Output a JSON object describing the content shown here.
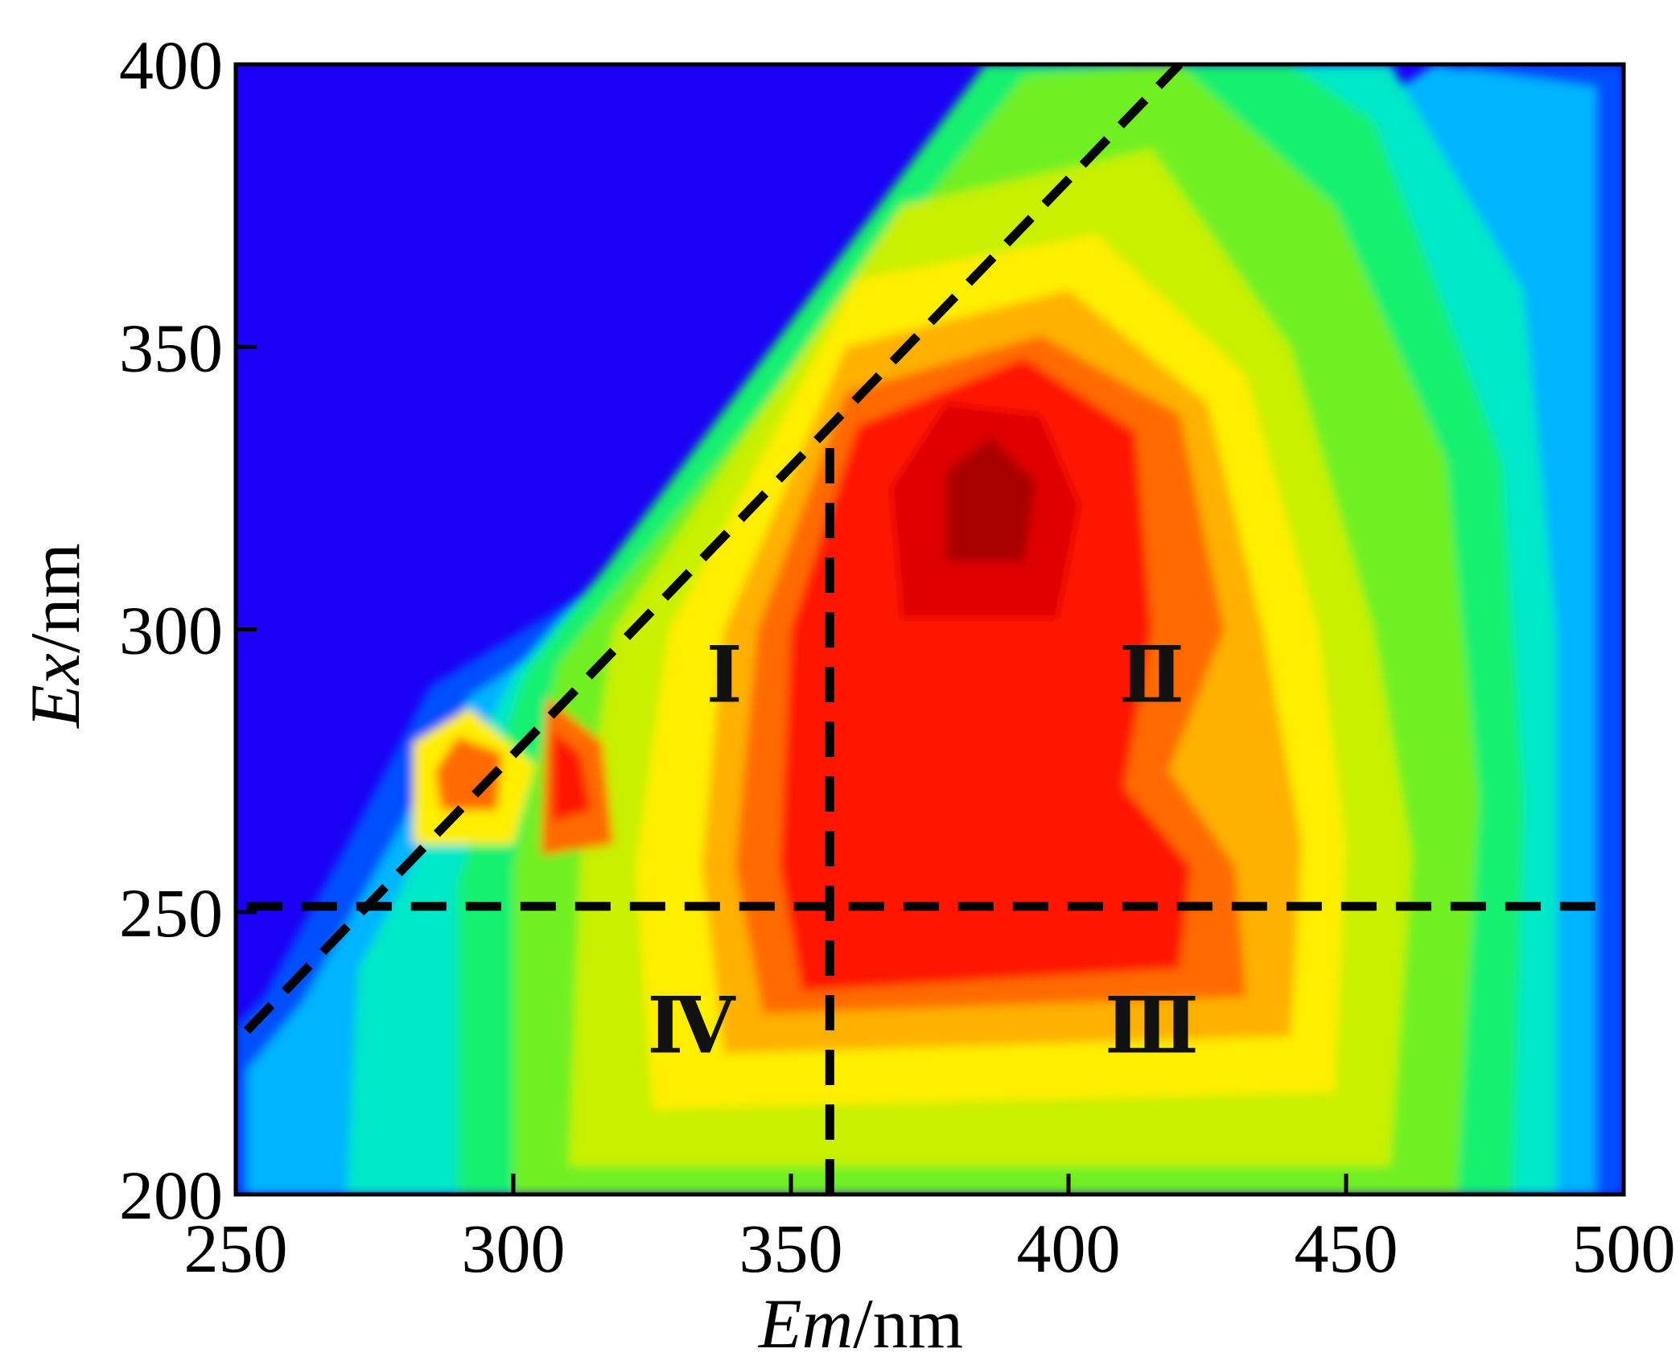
{
  "chart_data": {
    "type": "heatmap",
    "subtype": "fluorescence-eem-contour",
    "title": "",
    "xlabel": {
      "italic": "Em",
      "unit": "/nm"
    },
    "ylabel": {
      "italic": "Ex",
      "unit": "/nm"
    },
    "xlim": [
      250,
      500
    ],
    "ylim": [
      200,
      400
    ],
    "x_ticks": [
      250,
      300,
      350,
      400,
      450,
      500
    ],
    "y_ticks": [
      200,
      250,
      300,
      350,
      400
    ],
    "x_tick_labels": [
      "250",
      "300",
      "350",
      "400",
      "450",
      "500"
    ],
    "y_tick_labels": [
      "200",
      "250",
      "300",
      "350",
      "400"
    ],
    "grid": false,
    "colormap": [
      "#1a00f5",
      "#0050ff",
      "#00b4ff",
      "#00e8c8",
      "#18f070",
      "#70f020",
      "#c8f000",
      "#ffee00",
      "#ffb000",
      "#ff6a00",
      "#ff1800",
      "#e00000",
      "#a80000"
    ],
    "background_color": "#1a00f5",
    "peaks": [
      {
        "em": 385,
        "ex": 322,
        "intensity": 1.0
      },
      {
        "em": 293,
        "ex": 273,
        "intensity": 0.85
      },
      {
        "em": 310,
        "ex": 272,
        "intensity": 0.85
      }
    ],
    "boundaries": [
      {
        "type": "diagonal",
        "from": [
          252,
          229
        ],
        "to": [
          420,
          400
        ],
        "style": "dashed"
      },
      {
        "type": "horizontal",
        "y": 251,
        "from_x": 252,
        "to_x": 495,
        "style": "dashed"
      },
      {
        "type": "vertical",
        "x": 357,
        "from_y": 200,
        "to_y": 333,
        "style": "dashed"
      }
    ],
    "regions": [
      {
        "label": "Ⅰ",
        "em": 338,
        "ex": 292
      },
      {
        "label": "Ⅱ",
        "em": 415,
        "ex": 292
      },
      {
        "label": "Ⅲ",
        "em": 415,
        "ex": 230
      },
      {
        "label": "Ⅳ",
        "em": 332,
        "ex": 230
      }
    ]
  }
}
